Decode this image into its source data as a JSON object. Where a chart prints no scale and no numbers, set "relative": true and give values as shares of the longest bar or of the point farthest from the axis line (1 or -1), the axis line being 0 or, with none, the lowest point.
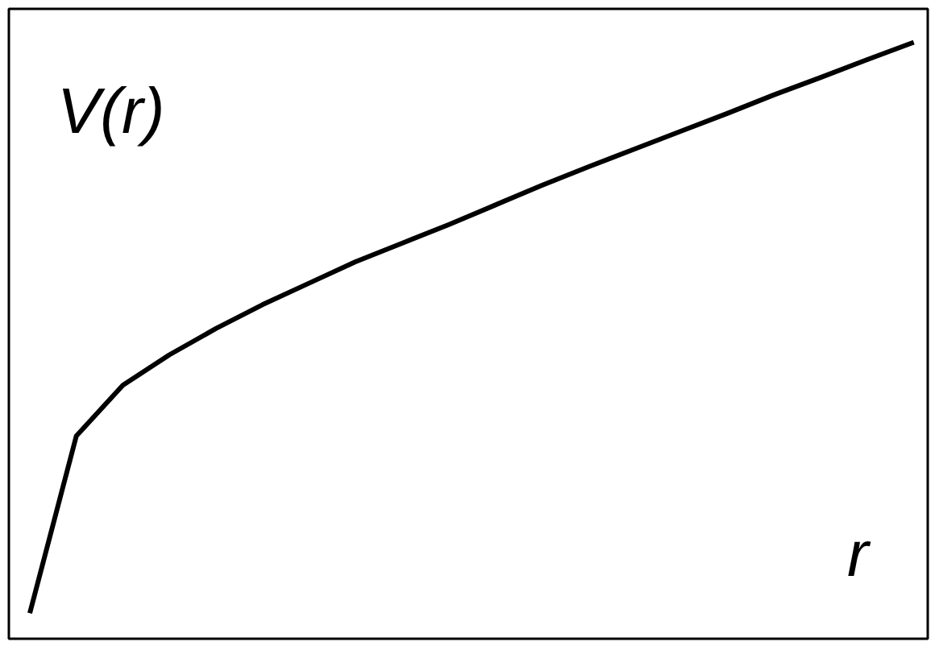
{
  "chart_data": {
    "type": "line",
    "relative": true,
    "xlabel": "r",
    "ylabel": "V(r)",
    "categories": [
      null,
      null,
      null,
      null,
      null,
      null,
      null,
      null,
      null,
      null,
      null,
      null,
      null,
      null,
      null,
      null,
      null,
      null,
      null,
      null
    ],
    "series": [
      {
        "color": "#000000",
        "values": [
          0.043,
          0.34,
          0.425,
          0.476,
          0.52,
          0.56,
          0.596,
          0.632,
          0.663,
          0.694,
          0.727,
          0.76,
          0.791,
          0.821,
          0.851,
          0.881,
          0.912,
          0.941,
          0.971,
          1.0
        ]
      }
    ],
    "grid": false
  }
}
